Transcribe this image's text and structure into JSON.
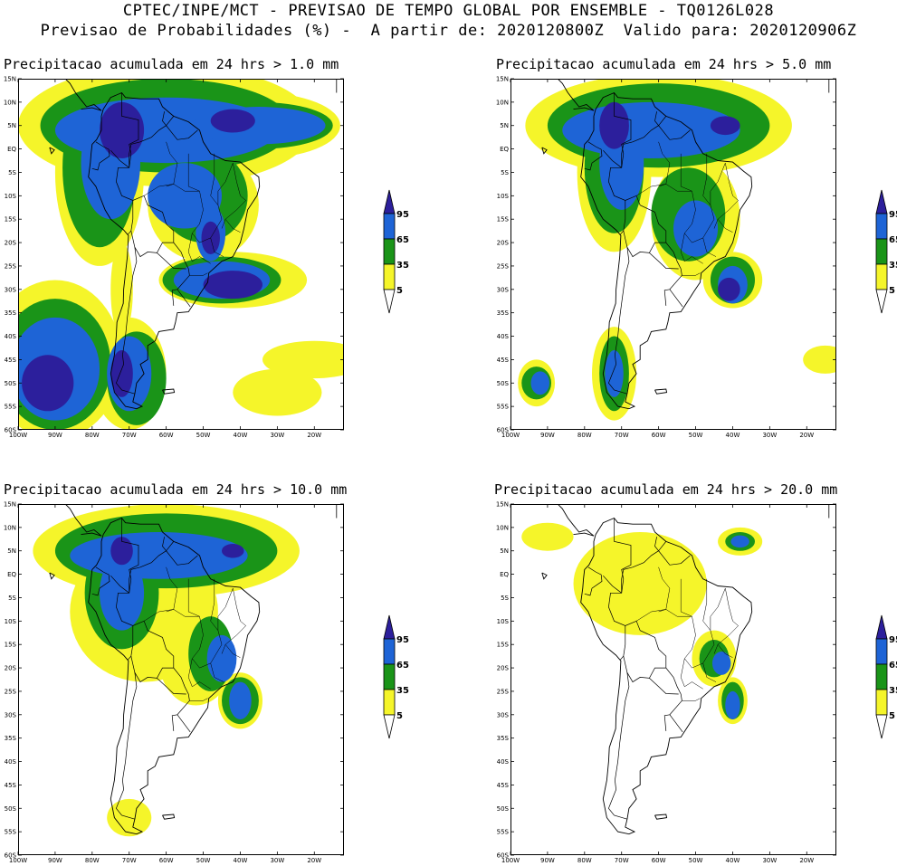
{
  "header": {
    "line1": "CPTEC/INPE/MCT - PREVISAO DE TEMPO GLOBAL POR ENSEMBLE - TQ0126L028",
    "line2": "Previsao de Probabilidades (%) -  A partir de: 2020120800Z  Valido para: 2020120906Z"
  },
  "axes": {
    "lat_labels": [
      "15N",
      "10N",
      "5N",
      "EQ",
      "5S",
      "10S",
      "15S",
      "20S",
      "25S",
      "30S",
      "35S",
      "40S",
      "45S",
      "50S",
      "55S",
      "60S"
    ],
    "lon_labels": [
      "100W",
      "90W",
      "80W",
      "70W",
      "60W",
      "50W",
      "40W",
      "30W",
      "20W"
    ]
  },
  "colorbar": {
    "labels": [
      "95",
      "65",
      "35",
      "5"
    ],
    "colors": [
      "#2c1f9c",
      "#1e64d6",
      "#1a9418",
      "#f5f52a",
      "#ffffff"
    ]
  },
  "panels": [
    {
      "title": "Precipitacao acumulada em 24 hrs > 1.0 mm"
    },
    {
      "title": "Precipitacao acumulada em 24 hrs > 5.0 mm"
    },
    {
      "title": "Precipitacao acumulada em 24 hrs > 10.0 mm"
    },
    {
      "title": "Precipitacao acumulada em 24 hrs > 20.0 mm"
    }
  ]
}
